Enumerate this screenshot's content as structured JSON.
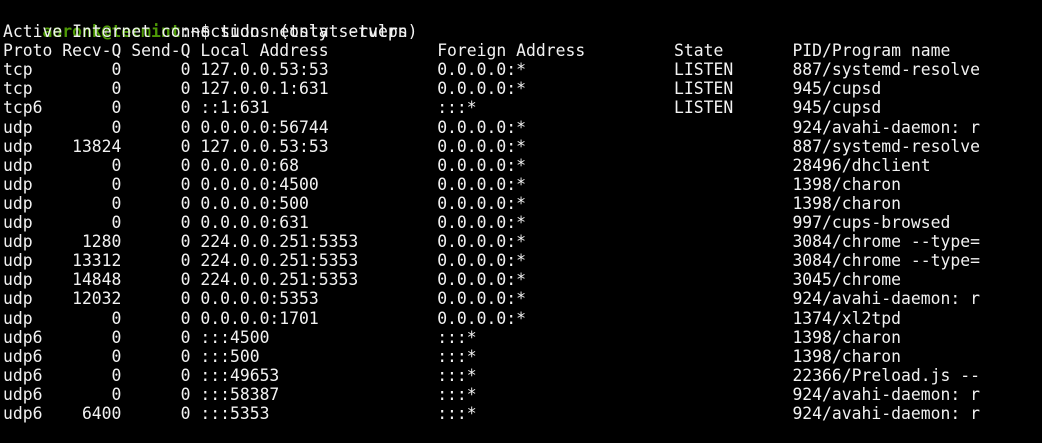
{
  "terminal": {
    "colors": {
      "background": "#000000",
      "foreground": "#F2F2F2",
      "prompt_green": "#4E9A06"
    },
    "prompt": {
      "user_host": "aaronk@tecmint",
      "suffix": ":~$"
    },
    "command": "sudo netstat -tulpn",
    "status_line": "Active Internet connections (only servers)",
    "table": {
      "headers": [
        "Proto",
        "Recv-Q",
        "Send-Q",
        "Local Address",
        "Foreign Address",
        "State",
        "PID/Program name"
      ],
      "rows": [
        {
          "proto": "tcp",
          "recv_q": "0",
          "send_q": "0",
          "local_address": "127.0.0.53:53",
          "foreign_address": "0.0.0.0:*",
          "state": "LISTEN",
          "pid_program": "887/systemd-resolve"
        },
        {
          "proto": "tcp",
          "recv_q": "0",
          "send_q": "0",
          "local_address": "127.0.0.1:631",
          "foreign_address": "0.0.0.0:*",
          "state": "LISTEN",
          "pid_program": "945/cupsd"
        },
        {
          "proto": "tcp6",
          "recv_q": "0",
          "send_q": "0",
          "local_address": "::1:631",
          "foreign_address": ":::*",
          "state": "LISTEN",
          "pid_program": "945/cupsd"
        },
        {
          "proto": "udp",
          "recv_q": "0",
          "send_q": "0",
          "local_address": "0.0.0.0:56744",
          "foreign_address": "0.0.0.0:*",
          "state": "",
          "pid_program": "924/avahi-daemon: r"
        },
        {
          "proto": "udp",
          "recv_q": "13824",
          "send_q": "0",
          "local_address": "127.0.0.53:53",
          "foreign_address": "0.0.0.0:*",
          "state": "",
          "pid_program": "887/systemd-resolve"
        },
        {
          "proto": "udp",
          "recv_q": "0",
          "send_q": "0",
          "local_address": "0.0.0.0:68",
          "foreign_address": "0.0.0.0:*",
          "state": "",
          "pid_program": "28496/dhclient"
        },
        {
          "proto": "udp",
          "recv_q": "0",
          "send_q": "0",
          "local_address": "0.0.0.0:4500",
          "foreign_address": "0.0.0.0:*",
          "state": "",
          "pid_program": "1398/charon"
        },
        {
          "proto": "udp",
          "recv_q": "0",
          "send_q": "0",
          "local_address": "0.0.0.0:500",
          "foreign_address": "0.0.0.0:*",
          "state": "",
          "pid_program": "1398/charon"
        },
        {
          "proto": "udp",
          "recv_q": "0",
          "send_q": "0",
          "local_address": "0.0.0.0:631",
          "foreign_address": "0.0.0.0:*",
          "state": "",
          "pid_program": "997/cups-browsed"
        },
        {
          "proto": "udp",
          "recv_q": "1280",
          "send_q": "0",
          "local_address": "224.0.0.251:5353",
          "foreign_address": "0.0.0.0:*",
          "state": "",
          "pid_program": "3084/chrome --type="
        },
        {
          "proto": "udp",
          "recv_q": "13312",
          "send_q": "0",
          "local_address": "224.0.0.251:5353",
          "foreign_address": "0.0.0.0:*",
          "state": "",
          "pid_program": "3084/chrome --type="
        },
        {
          "proto": "udp",
          "recv_q": "14848",
          "send_q": "0",
          "local_address": "224.0.0.251:5353",
          "foreign_address": "0.0.0.0:*",
          "state": "",
          "pid_program": "3045/chrome"
        },
        {
          "proto": "udp",
          "recv_q": "12032",
          "send_q": "0",
          "local_address": "0.0.0.0:5353",
          "foreign_address": "0.0.0.0:*",
          "state": "",
          "pid_program": "924/avahi-daemon: r"
        },
        {
          "proto": "udp",
          "recv_q": "0",
          "send_q": "0",
          "local_address": "0.0.0.0:1701",
          "foreign_address": "0.0.0.0:*",
          "state": "",
          "pid_program": "1374/xl2tpd"
        },
        {
          "proto": "udp6",
          "recv_q": "0",
          "send_q": "0",
          "local_address": ":::4500",
          "foreign_address": ":::*",
          "state": "",
          "pid_program": "1398/charon"
        },
        {
          "proto": "udp6",
          "recv_q": "0",
          "send_q": "0",
          "local_address": ":::500",
          "foreign_address": ":::*",
          "state": "",
          "pid_program": "1398/charon"
        },
        {
          "proto": "udp6",
          "recv_q": "0",
          "send_q": "0",
          "local_address": ":::49653",
          "foreign_address": ":::*",
          "state": "",
          "pid_program": "22366/Preload.js --"
        },
        {
          "proto": "udp6",
          "recv_q": "0",
          "send_q": "0",
          "local_address": ":::58387",
          "foreign_address": ":::*",
          "state": "",
          "pid_program": "924/avahi-daemon: r"
        },
        {
          "proto": "udp6",
          "recv_q": "6400",
          "send_q": "0",
          "local_address": ":::5353",
          "foreign_address": ":::*",
          "state": "",
          "pid_program": "924/avahi-daemon: r"
        }
      ]
    }
  }
}
